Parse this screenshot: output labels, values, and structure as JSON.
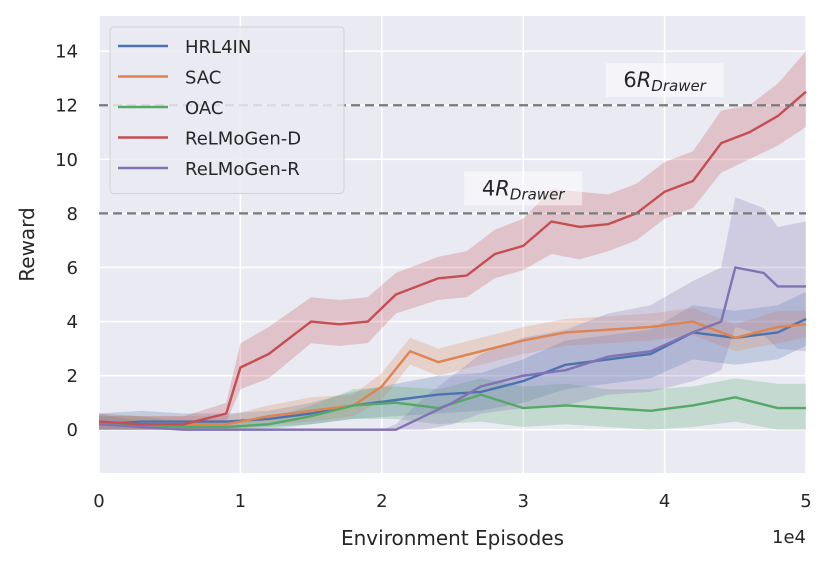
{
  "chart_data": {
    "type": "line",
    "xlabel": "Environment Episodes",
    "ylabel": "Reward",
    "x_multiplier_label": "1e4",
    "xlim": [
      0,
      5
    ],
    "ylim": [
      -1.6,
      15.3
    ],
    "xticks": [
      0,
      1,
      2,
      3,
      4,
      5
    ],
    "yticks": [
      0,
      2,
      4,
      6,
      8,
      10,
      12,
      14
    ],
    "grid": true,
    "background": "#eaeaf2",
    "legend_position": "top-left",
    "reference_lines": [
      {
        "y": 8,
        "label_prefix": "4",
        "label_r": "R",
        "label_sub": "Drawer",
        "label_x": 3.0
      },
      {
        "y": 12,
        "label_prefix": "6",
        "label_r": "R",
        "label_sub": "Drawer",
        "label_x": 4.0
      }
    ],
    "series": [
      {
        "name": "HRL4IN",
        "color": "#4c72b0",
        "x": [
          0,
          0.3,
          0.6,
          0.9,
          1.2,
          1.5,
          1.8,
          2.1,
          2.4,
          2.7,
          3.0,
          3.3,
          3.6,
          3.9,
          4.2,
          4.5,
          4.8,
          5.0
        ],
        "y": [
          0.2,
          0.3,
          0.3,
          0.3,
          0.4,
          0.6,
          0.9,
          1.1,
          1.3,
          1.4,
          1.8,
          2.4,
          2.6,
          2.8,
          3.6,
          3.4,
          3.6,
          4.1
        ],
        "lower": [
          0.0,
          0.0,
          0.0,
          0.0,
          0.1,
          0.2,
          0.4,
          0.5,
          0.6,
          0.7,
          1.0,
          1.5,
          1.7,
          1.9,
          2.6,
          2.4,
          2.6,
          3.1
        ],
        "upper": [
          0.6,
          0.7,
          0.6,
          0.6,
          0.7,
          1.0,
          1.4,
          1.7,
          2.0,
          2.1,
          2.6,
          3.3,
          3.5,
          3.7,
          4.6,
          4.4,
          4.6,
          5.1
        ]
      },
      {
        "name": "SAC",
        "color": "#dd8452",
        "x": [
          0,
          0.3,
          0.6,
          0.9,
          1.2,
          1.5,
          1.8,
          2.0,
          2.2,
          2.4,
          2.7,
          3.0,
          3.3,
          3.6,
          3.9,
          4.2,
          4.5,
          4.8,
          5.0
        ],
        "y": [
          0.2,
          0.2,
          0.2,
          0.2,
          0.5,
          0.7,
          0.9,
          1.6,
          2.9,
          2.5,
          2.9,
          3.3,
          3.6,
          3.7,
          3.8,
          4.0,
          3.4,
          3.8,
          3.9
        ],
        "lower": [
          0.0,
          0.0,
          0.0,
          0.0,
          0.2,
          0.3,
          0.5,
          1.1,
          2.4,
          2.0,
          2.4,
          2.8,
          3.1,
          3.2,
          3.3,
          3.5,
          2.9,
          3.2,
          3.4
        ],
        "upper": [
          0.5,
          0.5,
          0.5,
          0.5,
          0.9,
          1.2,
          1.3,
          2.1,
          3.4,
          3.0,
          3.4,
          3.8,
          4.1,
          4.2,
          4.3,
          4.5,
          3.9,
          4.4,
          4.4
        ]
      },
      {
        "name": "OAC",
        "color": "#55a868",
        "x": [
          0,
          0.3,
          0.6,
          0.9,
          1.2,
          1.5,
          1.8,
          2.1,
          2.4,
          2.7,
          3.0,
          3.3,
          3.6,
          3.9,
          4.2,
          4.5,
          4.8,
          5.0
        ],
        "y": [
          0.2,
          0.2,
          0.1,
          0.1,
          0.2,
          0.5,
          0.9,
          1.0,
          0.8,
          1.3,
          0.8,
          0.9,
          0.8,
          0.7,
          0.9,
          1.2,
          0.8,
          0.8
        ],
        "lower": [
          0.0,
          0.0,
          0.0,
          0.0,
          0.0,
          0.2,
          0.4,
          0.4,
          0.2,
          0.3,
          0.1,
          0.2,
          0.1,
          0.0,
          0.1,
          0.3,
          0.0,
          0.0
        ],
        "upper": [
          0.5,
          0.5,
          0.3,
          0.3,
          0.4,
          0.9,
          1.5,
          1.6,
          1.5,
          1.9,
          1.6,
          1.7,
          1.5,
          1.5,
          1.6,
          1.9,
          1.7,
          1.7
        ]
      },
      {
        "name": "ReLMoGen-D",
        "color": "#c44e52",
        "x": [
          0,
          0.3,
          0.6,
          0.9,
          1.0,
          1.2,
          1.5,
          1.7,
          1.9,
          2.1,
          2.4,
          2.6,
          2.8,
          3.0,
          3.2,
          3.4,
          3.6,
          3.8,
          4.0,
          4.2,
          4.4,
          4.6,
          4.8,
          5.0
        ],
        "y": [
          0.3,
          0.2,
          0.2,
          0.6,
          2.3,
          2.8,
          4.0,
          3.9,
          4.0,
          5.0,
          5.6,
          5.7,
          6.5,
          6.8,
          7.7,
          7.5,
          7.6,
          8.0,
          8.8,
          9.2,
          10.6,
          11.0,
          11.6,
          12.5
        ],
        "lower": [
          0.0,
          0.0,
          0.0,
          0.3,
          1.5,
          1.9,
          3.2,
          3.1,
          3.2,
          4.3,
          4.8,
          4.9,
          5.6,
          5.9,
          6.5,
          6.3,
          6.6,
          7.0,
          7.8,
          8.2,
          9.5,
          10.0,
          10.5,
          11.2
        ],
        "upper": [
          0.6,
          0.5,
          0.5,
          1.0,
          3.2,
          3.8,
          4.9,
          4.8,
          4.9,
          5.8,
          6.4,
          6.6,
          7.4,
          7.8,
          8.9,
          8.8,
          8.7,
          9.1,
          9.9,
          10.3,
          11.8,
          12.0,
          12.8,
          14.0
        ]
      },
      {
        "name": "ReLMoGen-R",
        "color": "#8172b3",
        "x": [
          0,
          0.3,
          0.6,
          0.9,
          1.2,
          1.5,
          1.8,
          2.0,
          2.1,
          2.3,
          2.5,
          2.7,
          3.0,
          3.3,
          3.6,
          3.9,
          4.2,
          4.4,
          4.5,
          4.7,
          4.8,
          5.0
        ],
        "y": [
          0.2,
          0.1,
          0.0,
          0.0,
          0.0,
          0.0,
          0.0,
          0.0,
          0.0,
          0.5,
          1.0,
          1.6,
          2.0,
          2.2,
          2.7,
          2.9,
          3.6,
          4.0,
          6.0,
          5.8,
          5.3,
          5.3
        ],
        "lower": [
          0.0,
          0.0,
          0.0,
          0.0,
          0.0,
          0.0,
          0.0,
          0.0,
          0.0,
          0.0,
          0.2,
          0.6,
          0.8,
          0.9,
          1.3,
          1.4,
          1.8,
          2.2,
          3.8,
          3.5,
          3.0,
          2.9
        ],
        "upper": [
          0.6,
          0.3,
          0.0,
          0.0,
          0.0,
          0.0,
          0.0,
          0.0,
          0.2,
          1.2,
          2.0,
          2.8,
          3.4,
          3.7,
          4.3,
          4.6,
          5.5,
          6.0,
          8.6,
          8.2,
          7.5,
          7.7
        ]
      }
    ]
  }
}
